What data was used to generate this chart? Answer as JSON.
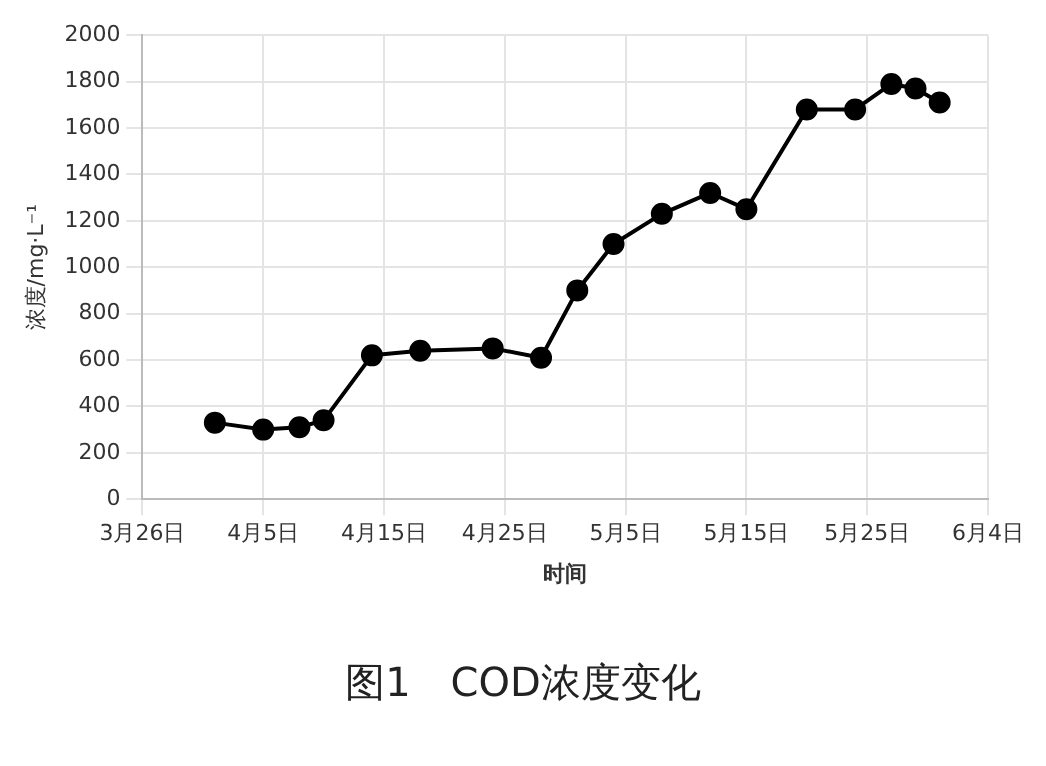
{
  "chart_data": {
    "type": "line",
    "xlabel": "时间",
    "ylabel": "浓度/mg·L⁻¹",
    "x": [
      "--04-01",
      "--04-05",
      "--04-08",
      "--04-10",
      "--04-14",
      "--04-18",
      "--04-24",
      "--04-28",
      "--05-01",
      "--05-04",
      "--05-08",
      "--05-12",
      "--05-15",
      "--05-20",
      "--05-24",
      "--05-27",
      "--05-29",
      "--05-31"
    ],
    "series": [
      {
        "color": "#000000",
        "values": [
          330,
          300,
          310,
          340,
          620,
          640,
          650,
          610,
          900,
          1100,
          1230,
          1320,
          1250,
          1680,
          1680,
          1790,
          1770,
          1710
        ]
      }
    ],
    "xlim": [
      "--03-26",
      "--06-04"
    ],
    "xticks": [
      {
        "value": "--03-26",
        "label": "3月26日"
      },
      {
        "value": "--04-05",
        "label": "4月5日"
      },
      {
        "value": "--04-15",
        "label": "4月15日"
      },
      {
        "value": "--04-25",
        "label": "4月25日"
      },
      {
        "value": "--05-05",
        "label": "5月5日"
      },
      {
        "value": "--05-15",
        "label": "5月15日"
      },
      {
        "value": "--05-25",
        "label": "5月25日"
      },
      {
        "value": "--06-04",
        "label": "6月4日"
      }
    ],
    "ylim": [
      0,
      2000
    ],
    "yticks": [
      0,
      200,
      400,
      600,
      800,
      1000,
      1200,
      1400,
      1600,
      1800,
      2000
    ],
    "grid": true,
    "legend": false,
    "marker": "circle",
    "line_style": "solid",
    "annotations": [
      "图1　COD浓度变化"
    ]
  }
}
